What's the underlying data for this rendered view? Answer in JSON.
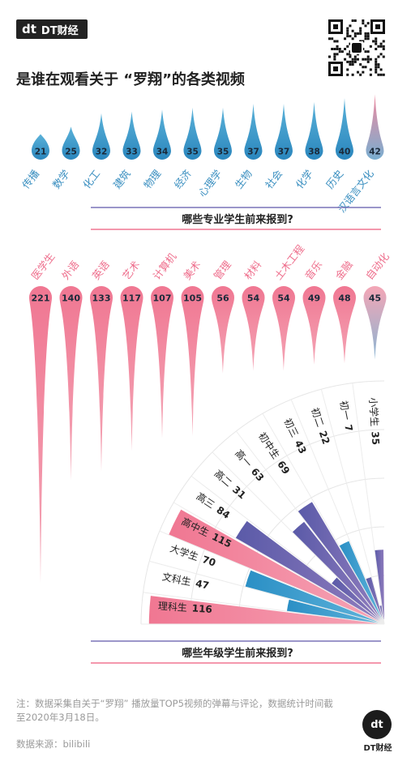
{
  "brand": {
    "mark": "dt",
    "name": "DT财经"
  },
  "title": "是谁在观看关于 “罗翔”的各类视频",
  "chart_data": [
    {
      "type": "bar",
      "title": "哪些专业学生前来报到?",
      "categories": [
        "传播",
        "数学",
        "化工",
        "建筑",
        "物理",
        "经济",
        "心理学",
        "生物",
        "社会",
        "化学",
        "历史",
        "汉语言文化",
        "医学生",
        "外语",
        "英语",
        "艺术",
        "计算机",
        "美术",
        "管理",
        "材料",
        "土木工程",
        "音乐",
        "金融",
        "自动化"
      ],
      "values": [
        21,
        25,
        32,
        33,
        34,
        35,
        35,
        37,
        37,
        38,
        40,
        42,
        221,
        140,
        133,
        117,
        107,
        105,
        56,
        54,
        54,
        49,
        48,
        45
      ]
    },
    {
      "type": "bar",
      "title": "哪些年级学生前来报到?",
      "categories": [
        "理科生",
        "文科生",
        "大学生",
        "高中生",
        "高三",
        "高二",
        "高一",
        "初中生",
        "初三",
        "初二",
        "初一",
        "小学生"
      ],
      "values": [
        116,
        47,
        70,
        115,
        84,
        31,
        63,
        69,
        43,
        22,
        7,
        35
      ]
    }
  ],
  "footer": {
    "note": "注：数据采集自关于“罗翔” 播放量TOP5视频的弹幕与评论，数据统计时间截至2020年3月18日。",
    "source": "数据来源：bilibili",
    "logo_label": "DT财经"
  },
  "colors": {
    "blue": "#3a8fc0",
    "pink": "#ee6e8c",
    "purple": "#6e6ab0",
    "text": "#222222"
  }
}
